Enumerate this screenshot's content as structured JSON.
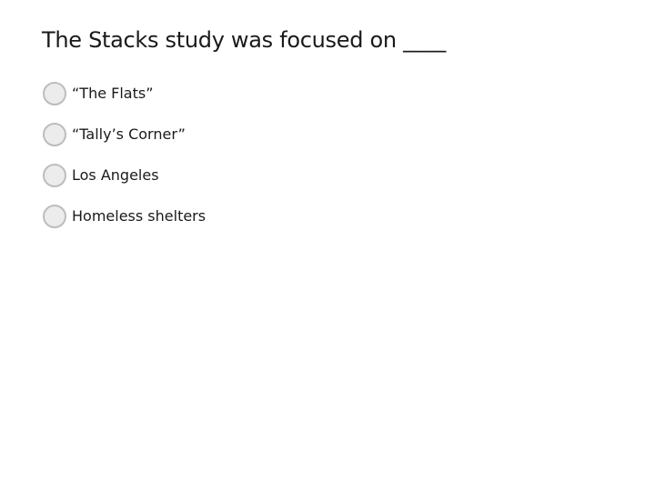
{
  "question": {
    "text": "The Stacks study was focused on ____"
  },
  "options": [
    {
      "label": "“The Flats”",
      "selected": false
    },
    {
      "label": "“Tally’s Corner”",
      "selected": false
    },
    {
      "label": "Los Angeles",
      "selected": false
    },
    {
      "label": "Homeless shelters",
      "selected": false
    }
  ]
}
